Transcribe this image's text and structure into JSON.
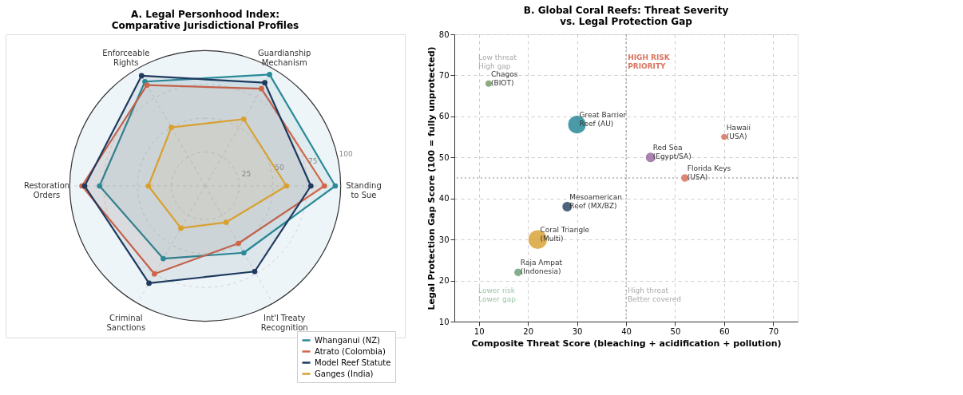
{
  "chart_data": [
    {
      "type": "radar",
      "title": "A. Legal Personhood Index:\nComparative Jurisdictional Profiles",
      "categories": [
        "Guardianship\nMechanism",
        "Standing\nto Sue",
        "Int'l Treaty\nRecognition",
        "Criminal\nSanctions",
        "Restoration\nOrders",
        "Enforceable\nRights"
      ],
      "series": [
        {
          "name": "Whanganui (NZ)",
          "color": "#2a8a98",
          "values": [
            95,
            96,
            57,
            62,
            78,
            89
          ]
        },
        {
          "name": "Atrato (Colombia)",
          "color": "#d0654a",
          "values": [
            83,
            88,
            49,
            75,
            91,
            86
          ]
        },
        {
          "name": "Model Reef Statute",
          "color": "#1f3a5f",
          "values": [
            88,
            78,
            73,
            83,
            89,
            94
          ]
        },
        {
          "name": "Ganges (India)",
          "color": "#d9a030",
          "values": [
            57,
            60,
            31,
            36,
            42,
            50
          ]
        }
      ],
      "ylim": [
        0,
        100
      ],
      "yticks": [
        25,
        50,
        75,
        100
      ],
      "grid": true,
      "legend": "bottom right",
      "marker": "circle"
    },
    {
      "type": "bubble",
      "title": "B. Global Coral Reefs: Threat Severity\nvs. Legal Protection Gap",
      "xlabel": "Composite Threat Score (bleaching + acidification + pollution)",
      "ylabel": "Legal Protection Gap Score (100 = fully unprotected)",
      "x": [
        12,
        30,
        60,
        45,
        52,
        28,
        22,
        18
      ],
      "values": [
        68,
        58,
        55,
        50,
        45,
        38,
        30,
        22
      ],
      "sizes": [
        0.14,
        0.9,
        0.12,
        0.28,
        0.18,
        0.28,
        1,
        0.18
      ],
      "colors": [
        "#7a9e6a",
        "#2a8a98",
        "#d9735f",
        "#9a6fa0",
        "#d9735f",
        "#2e4a6a",
        "#d9a43a",
        "#6fa07a"
      ],
      "xlim": [
        5,
        75
      ],
      "ylim": [
        10,
        80
      ],
      "xticks": [
        10,
        20,
        30,
        40,
        50,
        60,
        70
      ],
      "yticks": [
        10,
        20,
        30,
        40,
        50,
        60,
        70,
        80
      ],
      "grid": true,
      "ref_lines": [
        {
          "axis": "x",
          "value": 40,
          "line_style": "dotted"
        },
        {
          "axis": "y",
          "value": 45,
          "line_style": "dotted"
        }
      ],
      "annotations": [
        {
          "text": "Chagos\n(BIOT)",
          "x": 12,
          "y": 68
        },
        {
          "text": "Great Barrier\nReef (AU)",
          "x": 30,
          "y": 58
        },
        {
          "text": "Hawaii\n(USA)",
          "x": 60,
          "y": 55
        },
        {
          "text": "Red Sea\n(Egypt/SA)",
          "x": 45,
          "y": 50
        },
        {
          "text": "Florida Keys\n(USA)",
          "x": 52,
          "y": 45
        },
        {
          "text": "Mesoamerican\nReef (MX/BZ)",
          "x": 28,
          "y": 38
        },
        {
          "text": "Coral Triangle\n(Multi)",
          "x": 22,
          "y": 30
        },
        {
          "text": "Raja Ampat\n(Indonesia)",
          "x": 18,
          "y": 22
        },
        "Low threat\nHigh gap",
        "HIGH RISK\nPRIORITY",
        "Lower risk\nLower gap",
        "High threat\nBetter covered"
      ]
    }
  ]
}
